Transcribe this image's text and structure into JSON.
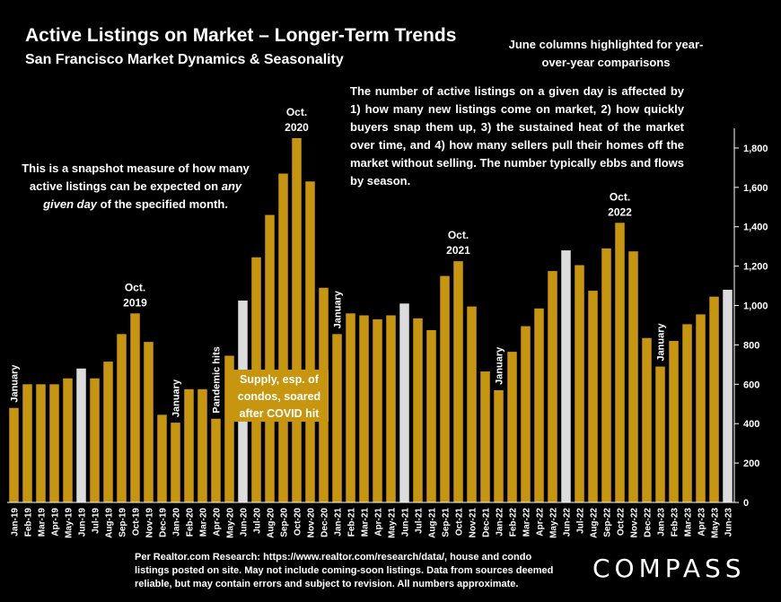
{
  "header": {
    "title": "Active Listings on Market – Longer-Term Trends",
    "subtitle": "San Francisco Market Dynamics & Seasonality"
  },
  "notes": {
    "june": "June columns highlighted for year-over-year comparisons",
    "main": "The number of active listings on a given day is affected by 1) how many new listings come on market, 2) how quickly buyers snap them up, 3) the sustained heat of the market over time, and 4) how many sellers pull their homes off the market without selling. The number typically ebbs and flows by season.",
    "snapshot_before": "This is a snapshot measure of how many active listings can be expected on ",
    "snapshot_em": "any given day",
    "snapshot_after": " of the specified month.",
    "covid": "Supply, esp. of condos, soared after COVID hit"
  },
  "footer": {
    "footnote": "Per Realtor.com Research: https://www.realtor.com/research/data/, house and condo listings posted on site. May not include coming-soon listings. Data from sources deemed reliable, but may contain errors and subject to revision. All numbers approximate.",
    "logo": "COMPASS"
  },
  "colors": {
    "bar": "#c8950e",
    "highlight": "#dcdcdc",
    "background": "#000000",
    "text": "#ffffff"
  },
  "chart_data": {
    "type": "bar",
    "title": "Active Listings on Market – Longer-Term Trends",
    "subtitle": "San Francisco Market Dynamics & Seasonality",
    "xlabel": "",
    "ylabel": "",
    "ylim": [
      0,
      1900
    ],
    "yticks": [
      0,
      200,
      400,
      600,
      800,
      1000,
      1200,
      1400,
      1600,
      1800
    ],
    "ytick_labels": [
      "0",
      "200",
      "400",
      "600",
      "800",
      "1,000",
      "1,200",
      "1,400",
      "1,600",
      "1,800"
    ],
    "y_axis_position": "right",
    "grid": false,
    "categories": [
      "Jan-19",
      "Feb-19",
      "Mar-19",
      "Apr-19",
      "May-19",
      "Jun-19",
      "Jul-19",
      "Aug-19",
      "Sep-19",
      "Oct-19",
      "Nov-19",
      "Dec-19",
      "Jan-20",
      "Feb-20",
      "Mar-20",
      "Apr-20",
      "May-20",
      "Jun-20",
      "Jul-20",
      "Aug-20",
      "Sep-20",
      "Oct-20",
      "Nov-20",
      "Dec-20",
      "Jan-21",
      "Feb-21",
      "Mar-21",
      "Apr-21",
      "May-21",
      "Jun-21",
      "Jul-21",
      "Aug-21",
      "Sep-21",
      "Oct-21",
      "Nov-21",
      "Dec-21",
      "Jan-22",
      "Feb-22",
      "Mar-22",
      "Apr-22",
      "May-22",
      "Jun-22",
      "Jul-22",
      "Aug-22",
      "Sep-22",
      "Oct-22",
      "Nov-22",
      "Dec-22",
      "Jan-23",
      "Feb-23",
      "Mar-23",
      "Apr-23",
      "May-23",
      "Jun-23"
    ],
    "values": [
      480,
      600,
      600,
      600,
      630,
      680,
      630,
      715,
      855,
      960,
      815,
      445,
      405,
      575,
      575,
      425,
      745,
      1025,
      1245,
      1460,
      1670,
      1850,
      1630,
      1090,
      855,
      960,
      950,
      930,
      950,
      1010,
      935,
      875,
      1150,
      1225,
      995,
      665,
      570,
      765,
      895,
      985,
      1175,
      1280,
      1205,
      1075,
      1290,
      1420,
      1275,
      835,
      690,
      820,
      905,
      955,
      1045,
      1080
    ],
    "highlighted": [
      "Jun-19",
      "Jun-20",
      "Jun-21",
      "Jun-22",
      "Jun-23"
    ],
    "annotations": [
      {
        "category": "Jan-19",
        "text": "January",
        "rotated": true
      },
      {
        "category": "Oct-19",
        "text": "Oct.\n2019",
        "rotated": false
      },
      {
        "category": "Jan-20",
        "text": "January",
        "rotated": true
      },
      {
        "category": "Apr-20",
        "text": "Pandemic hits",
        "rotated": true
      },
      {
        "category": "Oct-20",
        "text": "Oct.\n2020",
        "rotated": false
      },
      {
        "category": "Jan-21",
        "text": "January",
        "rotated": true
      },
      {
        "category": "Oct-21",
        "text": "Oct.\n2021",
        "rotated": false
      },
      {
        "category": "Jan-22",
        "text": "January",
        "rotated": true
      },
      {
        "category": "Oct-22",
        "text": "Oct.\n2022",
        "rotated": false
      },
      {
        "category": "Jan-23",
        "text": "January",
        "rotated": true
      }
    ]
  }
}
